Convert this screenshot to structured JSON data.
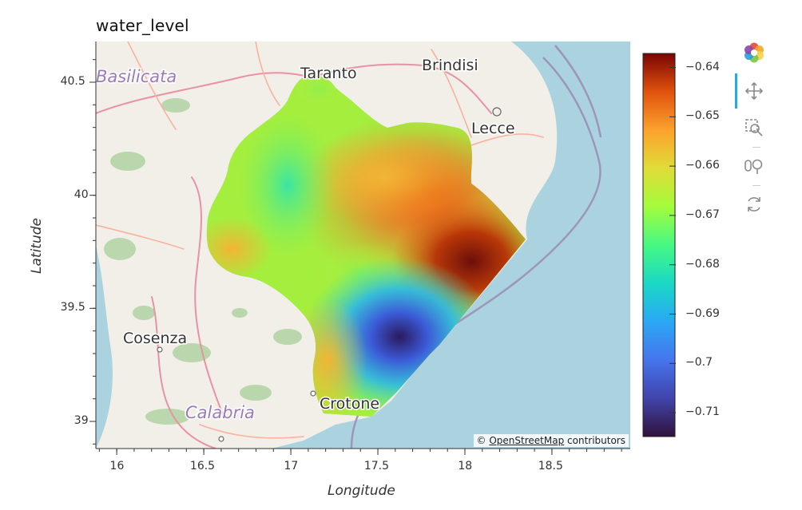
{
  "plot": {
    "title": "water_level",
    "xlabel": "Longitude",
    "ylabel": "Latitude",
    "attribution_prefix": "© ",
    "attribution_link": "OpenStreetMap",
    "attribution_suffix": " contributors"
  },
  "map_labels": {
    "basilicata": "Basilicata",
    "taranto": "Taranto",
    "brindisi": "Brindisi",
    "lecce": "Lecce",
    "cosenza": "Cosenza",
    "calabria": "Calabria",
    "crotone": "Crotone"
  },
  "axes": {
    "x_range": [
      15.88,
      18.95
    ],
    "y_range": [
      38.88,
      40.68
    ],
    "x_ticks": [
      "16",
      "16.5",
      "17",
      "17.5",
      "18",
      "18.5"
    ],
    "y_ticks": [
      "39",
      "39.5",
      "40",
      "40.5"
    ]
  },
  "colorbar": {
    "colormap": "turbo",
    "min": -0.715,
    "max": -0.637,
    "ticks": [
      "−0.64",
      "−0.65",
      "−0.66",
      "−0.67",
      "−0.68",
      "−0.69",
      "−0.7",
      "−0.71"
    ]
  },
  "toolbar": {
    "logo_icon": "bokeh-logo-icon",
    "tools": [
      "pan-icon",
      "box-zoom-icon",
      "wheel-zoom-icon",
      "reset-icon"
    ],
    "active_tool": "pan-icon"
  },
  "colors": {
    "sea": "#aad3df",
    "land": "#f2efe9",
    "accent": "#26aae1"
  }
}
